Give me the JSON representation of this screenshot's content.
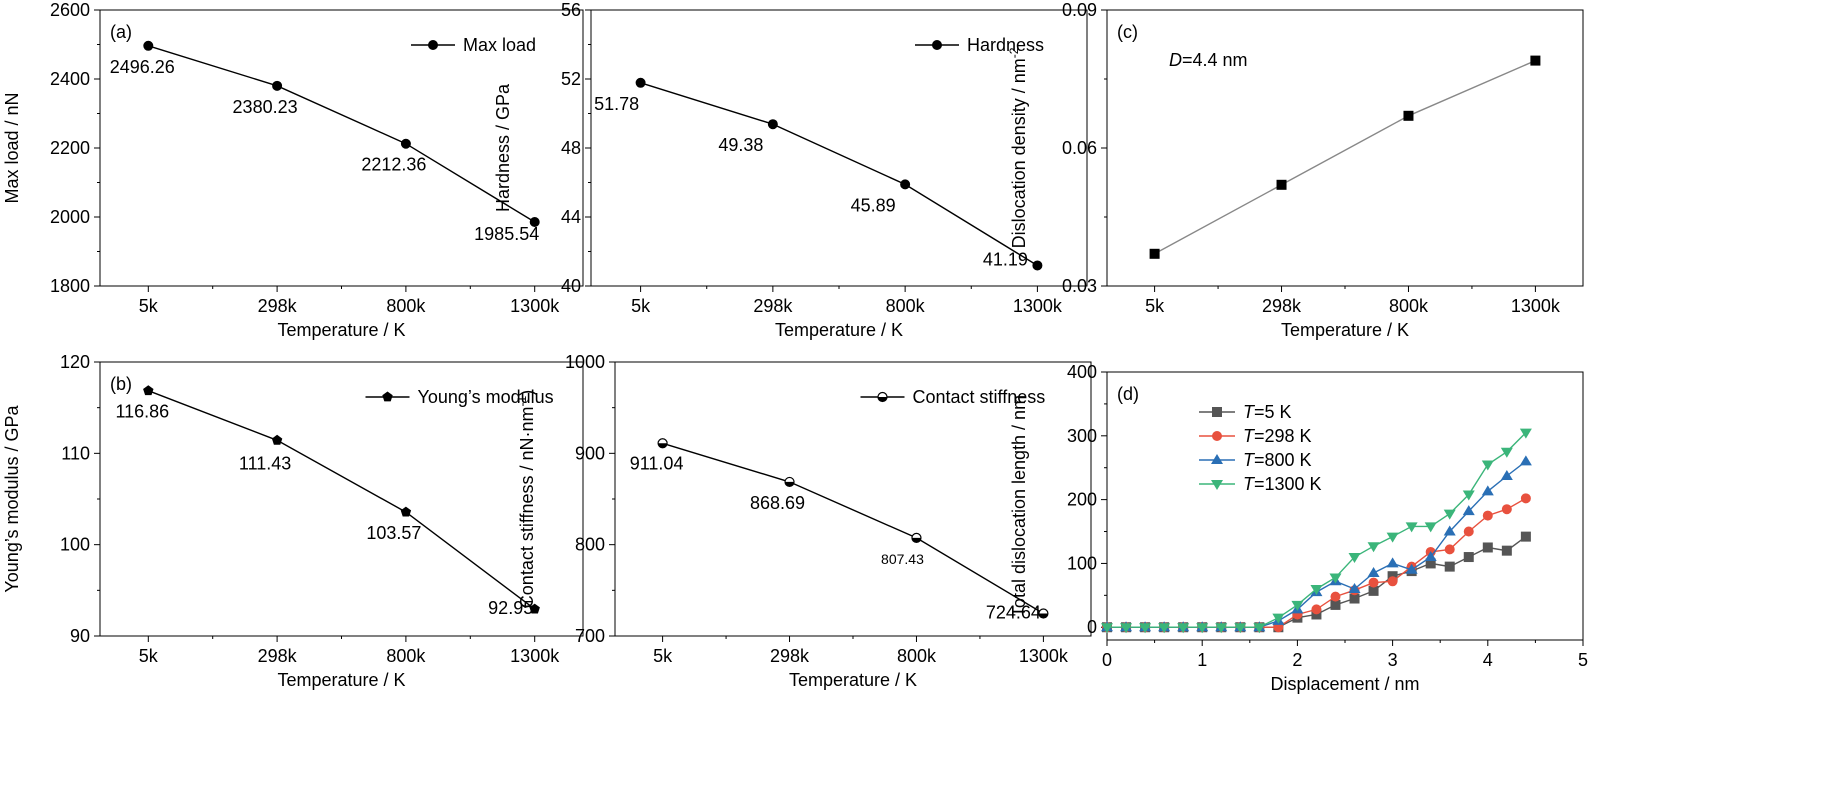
{
  "chart_data": [
    {
      "panel_label": "(a)",
      "type": "line",
      "categories": [
        "5k",
        "298k",
        "800k",
        "1300k"
      ],
      "xlabel": "Temperature / K",
      "ylabel": "Max load / nN",
      "ylim": [
        1800,
        2600
      ],
      "yticks": [
        "1800",
        "2000",
        "2200",
        "2400",
        "2600"
      ],
      "series": [
        {
          "name": "Max load",
          "values": [
            2496.26,
            2380.23,
            2212.36,
            1985.54
          ],
          "marker": "circle",
          "color": "#000000"
        }
      ],
      "data_labels": [
        "2496.26",
        "2380.23",
        "2212.36",
        "1985.54"
      ],
      "legend": "top-right"
    },
    {
      "panel_label": "",
      "type": "line",
      "categories": [
        "5k",
        "298k",
        "800k",
        "1300k"
      ],
      "xlabel": "Temperature / K",
      "ylabel": "Hardness / GPa",
      "ylim": [
        40,
        56
      ],
      "yticks": [
        "40",
        "44",
        "48",
        "52",
        "56"
      ],
      "series": [
        {
          "name": "Hardness",
          "values": [
            51.78,
            49.38,
            45.89,
            41.19
          ],
          "marker": "circle",
          "color": "#000000"
        }
      ],
      "data_labels": [
        "51.78",
        "49.38",
        "45.89",
        "41.19"
      ],
      "legend": "top-right"
    },
    {
      "panel_label": "(c)",
      "type": "line",
      "categories": [
        "5k",
        "298k",
        "800k",
        "1300k"
      ],
      "xlabel": "Temperature / K",
      "ylabel": "Dislocation density / nm",
      "ylabel_sup": "-2",
      "ylim": [
        0.03,
        0.09
      ],
      "yticks": [
        "0.03",
        "0.06",
        "0.09"
      ],
      "annotation": {
        "italic": "D",
        "rest": "=4.4 nm"
      },
      "series": [
        {
          "name": "",
          "values": [
            0.037,
            0.052,
            0.067,
            0.079
          ],
          "marker": "square",
          "color": "#000000",
          "line_color": "#888888"
        }
      ],
      "data_labels": []
    },
    {
      "panel_label": "(b)",
      "type": "line",
      "categories": [
        "5k",
        "298k",
        "800k",
        "1300k"
      ],
      "xlabel": "Temperature / K",
      "ylabel": "Young’s modulus / GPa",
      "ylim": [
        90,
        120
      ],
      "yticks": [
        "90",
        "100",
        "110",
        "120"
      ],
      "series": [
        {
          "name": "Young’s modulus",
          "values": [
            116.86,
            111.43,
            103.57,
            92.95
          ],
          "marker": "pentagon",
          "color": "#000000"
        }
      ],
      "data_labels": [
        "116.86",
        "111.43",
        "103.57",
        "92.95"
      ],
      "legend": "top-right"
    },
    {
      "panel_label": "",
      "type": "line",
      "categories": [
        "5k",
        "298k",
        "800k",
        "1300k"
      ],
      "xlabel": "Temperature / K",
      "ylabel": "Contact stiffness / nN·nm",
      "ylabel_sup": "-1",
      "ylabel_close": ")",
      "ylim": [
        700,
        1000
      ],
      "yticks": [
        "700",
        "800",
        "900",
        "1000"
      ],
      "series": [
        {
          "name": "Contact stiffness",
          "values": [
            911.04,
            868.69,
            807.43,
            724.64
          ],
          "marker": "halfcircle",
          "color": "#000000"
        }
      ],
      "data_labels": [
        "911.04",
        "868.69",
        "807.43",
        "724.64"
      ],
      "legend": "top-right"
    },
    {
      "panel_label": "(d)",
      "type": "line",
      "x": [
        0,
        0.2,
        0.4,
        0.6,
        0.8,
        1.0,
        1.2,
        1.4,
        1.6,
        1.8,
        2.0,
        2.2,
        2.4,
        2.6,
        2.8,
        3.0,
        3.2,
        3.4,
        3.6,
        3.8,
        4.0,
        4.2,
        4.4
      ],
      "xlabel": "Displacement / nm",
      "ylabel": "Total dislocation length / nm",
      "xlim": [
        0,
        5
      ],
      "ylim": [
        -20,
        400
      ],
      "xticks": [
        "0",
        "1",
        "2",
        "3",
        "4",
        "5"
      ],
      "yticks": [
        "0",
        "100",
        "200",
        "300",
        "400"
      ],
      "legend": "top-left",
      "series": [
        {
          "name": "T=5 K",
          "legend_italic": "T",
          "legend_rest": "=5 K",
          "marker": "square",
          "color": "#555555",
          "values": [
            0,
            0,
            0,
            0,
            0,
            0,
            0,
            0,
            0,
            0,
            15,
            20,
            35,
            45,
            57,
            80,
            88,
            100,
            95,
            110,
            125,
            120,
            142
          ]
        },
        {
          "name": "T=298 K",
          "legend_italic": "T",
          "legend_rest": "=298 K",
          "marker": "circle",
          "color": "#e8513e",
          "values": [
            0,
            0,
            0,
            0,
            0,
            0,
            0,
            0,
            0,
            0,
            20,
            28,
            48,
            58,
            70,
            72,
            95,
            118,
            122,
            150,
            175,
            185,
            202
          ]
        },
        {
          "name": "T=800 K",
          "legend_italic": "T",
          "legend_rest": "=800 K",
          "marker": "triangle-up",
          "color": "#2a6fb5",
          "values": [
            0,
            0,
            0,
            0,
            0,
            0,
            0,
            0,
            0,
            10,
            28,
            55,
            72,
            60,
            85,
            100,
            90,
            110,
            150,
            182,
            213,
            237,
            260
          ]
        },
        {
          "name": "T=1300 K",
          "legend_italic": "T",
          "legend_rest": "=1300 K",
          "marker": "triangle-down",
          "color": "#3bb57a",
          "values": [
            0,
            0,
            0,
            0,
            0,
            0,
            0,
            0,
            0,
            15,
            35,
            60,
            78,
            110,
            127,
            142,
            158,
            158,
            178,
            208,
            255,
            275,
            305
          ]
        }
      ]
    }
  ]
}
